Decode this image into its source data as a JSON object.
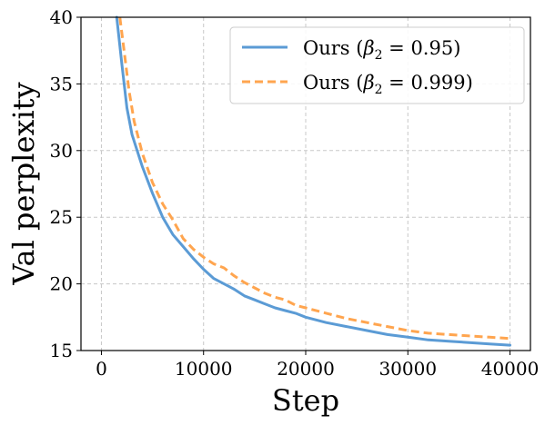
{
  "chart_data": {
    "type": "line",
    "title": "",
    "xlabel": "Step",
    "ylabel": "Val perplexity",
    "xlim": [
      -2000,
      42000
    ],
    "ylim": [
      15,
      40
    ],
    "xticks": [
      0,
      10000,
      20000,
      30000,
      40000
    ],
    "yticks": [
      15,
      20,
      25,
      30,
      35,
      40
    ],
    "grid": true,
    "legend_position": "top-right",
    "series": [
      {
        "name": "Ours (β₂ = 0.95)",
        "legend_main": "Ours (",
        "legend_beta": "β",
        "legend_sub": "2",
        "legend_rest": " = 0.95)",
        "color": "#5b9bd5",
        "style": "solid",
        "x": [
          1500,
          2000,
          2500,
          3000,
          4000,
          5000,
          6000,
          7000,
          8000,
          9000,
          10000,
          11000,
          12000,
          13000,
          14000,
          15000,
          16000,
          17000,
          18000,
          19000,
          20000,
          22000,
          24000,
          26000,
          28000,
          30000,
          32000,
          34000,
          36000,
          38000,
          40000
        ],
        "y": [
          40.0,
          36.5,
          33.2,
          31.2,
          28.8,
          26.8,
          25.0,
          23.7,
          22.8,
          21.9,
          21.1,
          20.4,
          20.0,
          19.6,
          19.1,
          18.8,
          18.5,
          18.2,
          18.0,
          17.8,
          17.5,
          17.1,
          16.8,
          16.5,
          16.2,
          16.0,
          15.8,
          15.7,
          15.6,
          15.5,
          15.4
        ]
      },
      {
        "name": "Ours (β₂ = 0.999)",
        "legend_main": "Ours (",
        "legend_beta": "β",
        "legend_sub": "2",
        "legend_rest": " = 0.999)",
        "color": "#ffa54f",
        "style": "dashed",
        "x": [
          1800,
          2200,
          2700,
          3200,
          4000,
          5000,
          6000,
          7000,
          8000,
          9000,
          10000,
          11000,
          12000,
          13000,
          14000,
          15000,
          16000,
          17000,
          18000,
          19000,
          20000,
          22000,
          24000,
          26000,
          28000,
          30000,
          32000,
          34000,
          36000,
          38000,
          40000
        ],
        "y": [
          40.0,
          37.6,
          34.5,
          32.2,
          29.8,
          27.6,
          26.0,
          24.8,
          23.4,
          22.6,
          22.0,
          21.5,
          21.2,
          20.6,
          20.1,
          19.7,
          19.3,
          19.0,
          18.8,
          18.4,
          18.2,
          17.8,
          17.4,
          17.1,
          16.8,
          16.5,
          16.3,
          16.2,
          16.1,
          16.0,
          15.9
        ]
      }
    ]
  }
}
